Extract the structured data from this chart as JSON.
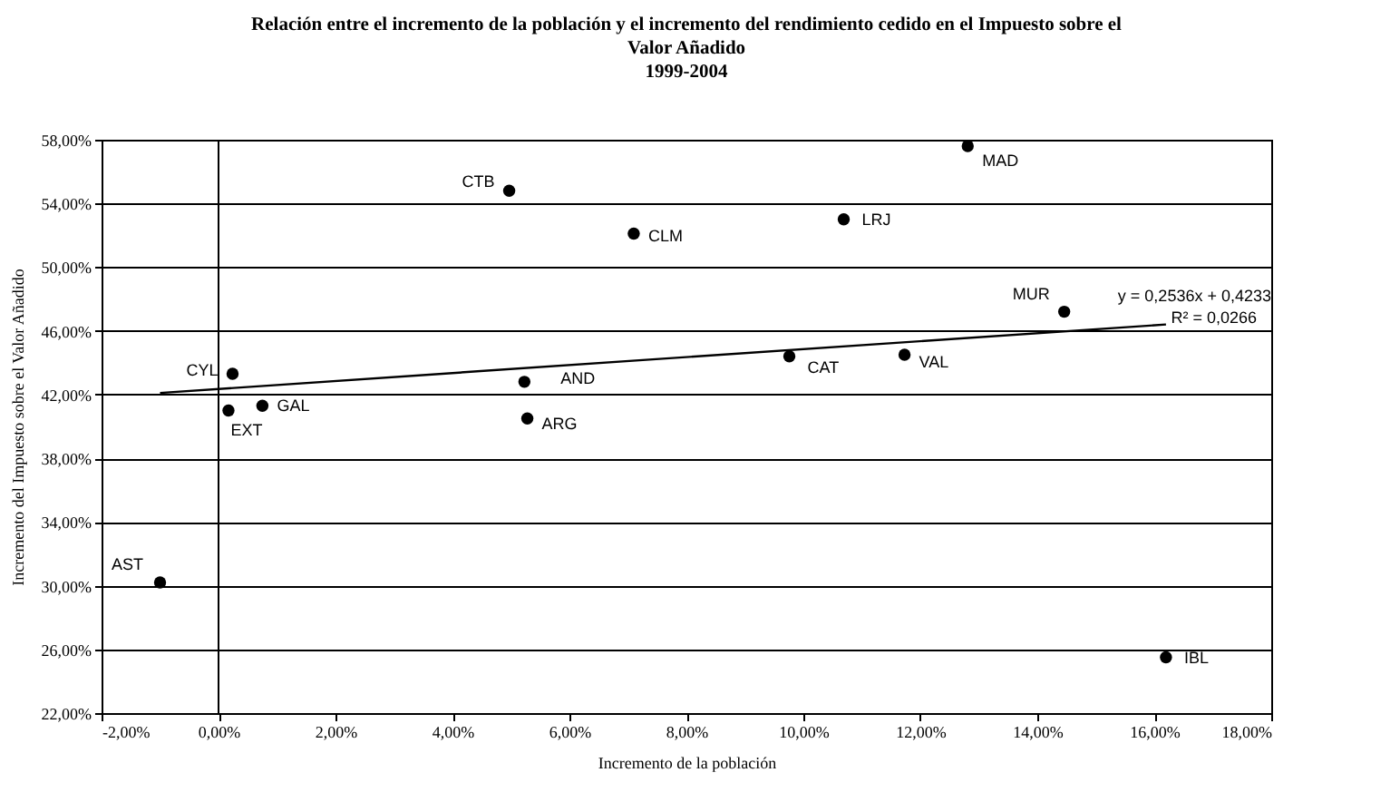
{
  "chart_data": {
    "type": "scatter",
    "title": [
      "Relación entre el incremento de la población y el incremento del rendimiento cedido en el Impuesto sobre el",
      "Valor Añadido",
      "1999-2004"
    ],
    "xlabel": "Incremento de la población",
    "ylabel": "Incremento del Impuesto sobre el Valor Añadido",
    "series": [
      {
        "marker": "circle",
        "color": "#000000",
        "x": [
          -1.0,
          4.97,
          0.24,
          0.17,
          0.75,
          5.23,
          5.28,
          7.1,
          12.81,
          10.69,
          14.46,
          9.76,
          11.73,
          16.2
        ],
        "values": [
          30.2,
          54.8,
          43.3,
          41.0,
          41.3,
          42.8,
          40.5,
          52.1,
          57.6,
          53.0,
          47.2,
          44.4,
          44.5,
          25.5
        ]
      },
      {
        "type": "line",
        "color": "#000000",
        "x": [
          -1.0,
          16.2
        ],
        "values": [
          42.1,
          46.4
        ]
      }
    ],
    "annotations": [
      {
        "text": "AST",
        "x": -1.0,
        "y": 30.2
      },
      {
        "text": "CTB",
        "x": 4.97,
        "y": 54.8
      },
      {
        "text": "CYL",
        "x": 0.24,
        "y": 43.3
      },
      {
        "text": "EXT",
        "x": 0.17,
        "y": 41.0
      },
      {
        "text": "GAL",
        "x": 0.75,
        "y": 41.3
      },
      {
        "text": "AND",
        "x": 5.23,
        "y": 42.8
      },
      {
        "text": "ARG",
        "x": 5.28,
        "y": 40.5
      },
      {
        "text": "CLM",
        "x": 7.1,
        "y": 52.1
      },
      {
        "text": "MAD",
        "x": 12.81,
        "y": 57.6
      },
      {
        "text": "LRJ",
        "x": 10.69,
        "y": 53.0
      },
      {
        "text": "MUR",
        "x": 14.46,
        "y": 47.2
      },
      {
        "text": "CAT",
        "x": 9.76,
        "y": 44.4
      },
      {
        "text": "VAL",
        "x": 11.73,
        "y": 44.5
      },
      {
        "text": "IBL",
        "x": 16.2,
        "y": 25.5
      },
      "y = 0,2536x + 0,4233",
      "R² = 0,0266"
    ],
    "ref_lines": [
      {
        "axis": "x",
        "value": 0,
        "color": "#000000"
      }
    ],
    "xlim": [
      -2,
      18
    ],
    "xticks": [
      {
        "value": -2,
        "label": "-2,00%"
      },
      {
        "value": 0,
        "label": "0,00%"
      },
      {
        "value": 2,
        "label": "2,00%"
      },
      {
        "value": 4,
        "label": "4,00%"
      },
      {
        "value": 6,
        "label": "6,00%"
      },
      {
        "value": 8,
        "label": "8,00%"
      },
      {
        "value": 10,
        "label": "10,00%"
      },
      {
        "value": 12,
        "label": "12,00%"
      },
      {
        "value": 14,
        "label": "14,00%"
      },
      {
        "value": 16,
        "label": "16,00%"
      },
      {
        "value": 18,
        "label": "18,00%"
      }
    ],
    "ylim": [
      22,
      58
    ],
    "yticks": [
      {
        "value": 22,
        "label": "22,00%"
      },
      {
        "value": 26,
        "label": "26,00%"
      },
      {
        "value": 30,
        "label": "30,00%"
      },
      {
        "value": 34,
        "label": "34,00%"
      },
      {
        "value": 38,
        "label": "38,00%"
      },
      {
        "value": 42,
        "label": "42,00%"
      },
      {
        "value": 46,
        "label": "46,00%"
      },
      {
        "value": 50,
        "label": "50,00%"
      },
      {
        "value": 54,
        "label": "54,00%"
      },
      {
        "value": 58,
        "label": "58,00%"
      }
    ],
    "grid": "y"
  }
}
